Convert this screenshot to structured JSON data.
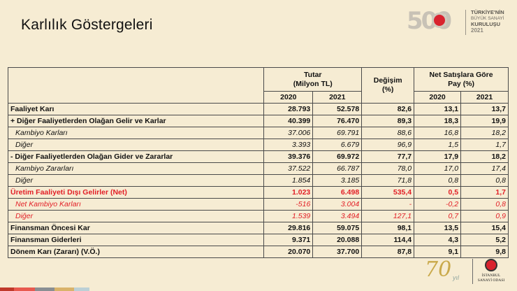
{
  "title": "Karlılık Göstergeleri",
  "logo_top": {
    "number": "500",
    "line1": "TÜRKİYE'NİN",
    "line2": "BÜYÜK SANAYİ",
    "line3": "KURULUŞU",
    "year": "2021"
  },
  "logo_bottom": {
    "number": "70",
    "suffix": "yıl",
    "org_line1": "İSTANBUL",
    "org_line2": "SANAYİ ODASI"
  },
  "table": {
    "group_headers": {
      "tutar": "Tutar",
      "tutar_unit": "(Milyon TL)",
      "degisim": "Değişim",
      "degisim_unit": "(%)",
      "pay": "Net Satışlara Göre",
      "pay_unit": "Pay (%)"
    },
    "years": [
      "2020",
      "2021",
      "2020",
      "2021"
    ],
    "rows": [
      {
        "label": "Faaliyet Karı",
        "style": "bold",
        "v2020": "28.793",
        "v2021": "52.578",
        "change": "82,6",
        "p2020": "13,1",
        "p2021": "13,7"
      },
      {
        "label": "+ Diğer Faaliyetlerden Olağan Gelir ve Karlar",
        "style": "bold",
        "v2020": "40.399",
        "v2021": "76.470",
        "change": "89,3",
        "p2020": "18,3",
        "p2021": "19,9"
      },
      {
        "label": "Kambiyo Karları",
        "style": "italic",
        "v2020": "37.006",
        "v2021": "69.791",
        "change": "88,6",
        "p2020": "16,8",
        "p2021": "18,2"
      },
      {
        "label": "Diğer",
        "style": "italic",
        "v2020": "3.393",
        "v2021": "6.679",
        "change": "96,9",
        "p2020": "1,5",
        "p2021": "1,7"
      },
      {
        "label": "- Diğer Faaliyetlerden Olağan Gider ve Zararlar",
        "style": "bold",
        "v2020": "39.376",
        "v2021": "69.972",
        "change": "77,7",
        "p2020": "17,9",
        "p2021": "18,2"
      },
      {
        "label": "Kambiyo Zararları",
        "style": "italic",
        "v2020": "37.522",
        "v2021": "66.787",
        "change": "78,0",
        "p2020": "17,0",
        "p2021": "17,4"
      },
      {
        "label": "Diğer",
        "style": "italic",
        "v2020": "1.854",
        "v2021": "3.185",
        "change": "71,8",
        "p2020": "0,8",
        "p2021": "0,8"
      },
      {
        "label": "Üretim Faaliyeti Dışı Gelirler (Net)",
        "style": "bold red",
        "v2020": "1.023",
        "v2021": "6.498",
        "change": "535,4",
        "p2020": "0,5",
        "p2021": "1,7"
      },
      {
        "label": "Net Kambiyo Karları",
        "style": "italic red",
        "v2020": "-516",
        "v2021": "3.004",
        "change": "-",
        "p2020": "-0,2",
        "p2021": "0,8"
      },
      {
        "label": "Diğer",
        "style": "italic red",
        "v2020": "1.539",
        "v2021": "3.494",
        "change": "127,1",
        "p2020": "0,7",
        "p2021": "0,9"
      },
      {
        "label": "Finansman Öncesi Kar",
        "style": "bold",
        "v2020": "29.816",
        "v2021": "59.075",
        "change": "98,1",
        "p2020": "13,5",
        "p2021": "15,4"
      },
      {
        "label": "Finansman Giderleri",
        "style": "bold",
        "v2020": "9.371",
        "v2021": "20.088",
        "change": "114,4",
        "p2020": "4,3",
        "p2021": "5,2"
      },
      {
        "label": "Dönem Karı (Zararı) (V.Ö.)",
        "style": "bold",
        "v2020": "20.070",
        "v2021": "37.700",
        "change": "87,8",
        "p2020": "9,1",
        "p2021": "9,8"
      }
    ]
  },
  "colors": {
    "background": "#f6ecd3",
    "highlight_red": "#e21e26",
    "stripe": [
      "#c0392b",
      "#e85a4f",
      "#8a8f93",
      "#d9b36a",
      "#bcd0d6"
    ]
  }
}
